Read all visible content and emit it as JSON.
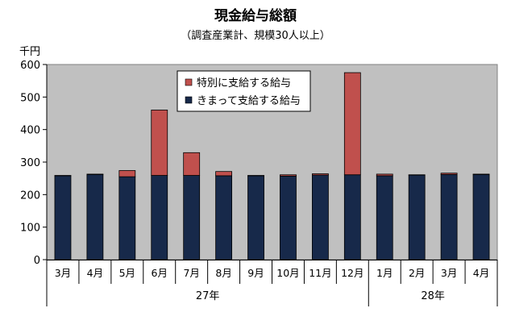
{
  "chart_data": {
    "type": "bar",
    "stacked": true,
    "title": "現金給与総額",
    "subtitle": "（調査産業計、規模30人以上）",
    "ylabel": "千円",
    "xlabel": "",
    "ylim": [
      0,
      600
    ],
    "yticks": [
      0,
      100,
      200,
      300,
      400,
      500,
      600
    ],
    "grid": false,
    "plot_background": "#c0c0c0",
    "legend_position": "top-center",
    "categories": [
      "3月",
      "4月",
      "5月",
      "6月",
      "7月",
      "8月",
      "9月",
      "10月",
      "11月",
      "12月",
      "1月",
      "2月",
      "3月",
      "4月"
    ],
    "year_groups": [
      {
        "label": "27年",
        "start": 0,
        "end": 9
      },
      {
        "label": "28年",
        "start": 10,
        "end": 13
      }
    ],
    "series": [
      {
        "name": "きまって支給する給与",
        "color": "#17294a",
        "values": [
          258,
          262,
          255,
          259,
          259,
          258,
          258,
          257,
          260,
          261,
          258,
          260,
          262,
          262
        ]
      },
      {
        "name": "特別に支給する給与",
        "color": "#c0504d",
        "values": [
          1,
          1,
          19,
          201,
          70,
          13,
          1,
          4,
          4,
          314,
          5,
          1,
          4,
          1
        ]
      }
    ],
    "legend_order": [
      1,
      0
    ]
  }
}
